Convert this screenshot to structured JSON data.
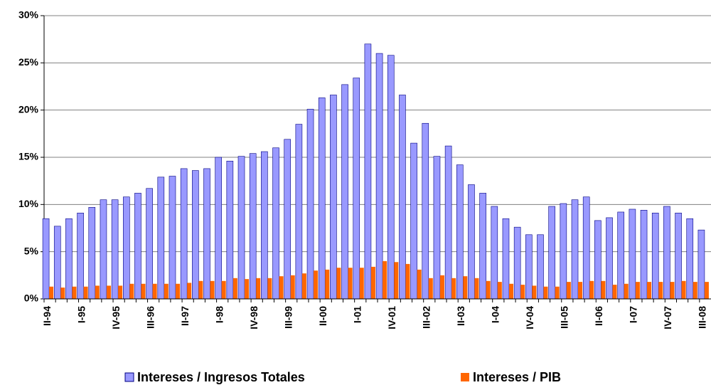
{
  "chart_data": {
    "type": "bar",
    "categories": [
      "II-94",
      null,
      null,
      "I-95",
      null,
      null,
      "IV-95",
      null,
      null,
      "III-96",
      null,
      null,
      "II-97",
      null,
      null,
      "I-98",
      null,
      null,
      "IV-98",
      null,
      null,
      "III-99",
      null,
      null,
      "II-00",
      null,
      null,
      "I-01",
      null,
      null,
      "IV-01",
      null,
      null,
      "III-02",
      null,
      null,
      "II-03",
      null,
      null,
      "I-04",
      null,
      null,
      "IV-04",
      null,
      null,
      "III-05",
      null,
      null,
      "II-06",
      null,
      null,
      "I-07",
      null,
      null,
      "IV-07",
      null,
      null,
      "III-08"
    ],
    "series": [
      {
        "name": "Intereses / Ingresos Totales",
        "color": "#9999ff",
        "values": [
          8.5,
          7.7,
          8.5,
          9.1,
          9.7,
          10.5,
          10.5,
          10.8,
          11.2,
          11.7,
          12.9,
          13.0,
          13.8,
          13.6,
          13.8,
          15.0,
          14.6,
          15.1,
          15.4,
          15.6,
          16.0,
          16.9,
          18.5,
          20.1,
          21.3,
          21.6,
          22.7,
          23.4,
          27.0,
          26.0,
          25.8,
          21.6,
          16.5,
          18.6,
          15.1,
          16.2,
          14.2,
          12.1,
          11.2,
          9.8,
          8.5,
          7.6,
          6.8,
          6.8,
          9.8,
          10.1,
          10.5,
          10.8,
          8.3,
          8.6,
          9.2,
          9.5,
          9.4,
          9.1,
          9.8,
          9.1,
          8.5,
          7.3
        ]
      },
      {
        "name": "Intereses / PIB",
        "color": "#ff6600",
        "values": [
          1.3,
          1.2,
          1.3,
          1.3,
          1.4,
          1.4,
          1.4,
          1.6,
          1.6,
          1.6,
          1.6,
          1.6,
          1.7,
          1.9,
          1.9,
          1.9,
          2.2,
          2.1,
          2.2,
          2.2,
          2.4,
          2.5,
          2.7,
          3.0,
          3.1,
          3.3,
          3.3,
          3.3,
          3.4,
          4.0,
          3.9,
          3.7,
          3.1,
          2.2,
          2.5,
          2.2,
          2.4,
          2.2,
          1.9,
          1.8,
          1.6,
          1.5,
          1.4,
          1.3,
          1.3,
          1.8,
          1.8,
          1.9,
          1.9,
          1.5,
          1.6,
          1.8,
          1.8,
          1.8,
          1.8,
          1.9,
          1.8,
          1.8
        ]
      }
    ],
    "ylim": [
      0,
      30
    ],
    "yticks": [
      {
        "value": 0,
        "label": "0%"
      },
      {
        "value": 5,
        "label": "5%"
      },
      {
        "value": 10,
        "label": "10%"
      },
      {
        "value": 15,
        "label": "15%"
      },
      {
        "value": 20,
        "label": "20%"
      },
      {
        "value": 25,
        "label": "25%"
      },
      {
        "value": 30,
        "label": "30%"
      }
    ],
    "grid": true,
    "legend": "bottom"
  }
}
